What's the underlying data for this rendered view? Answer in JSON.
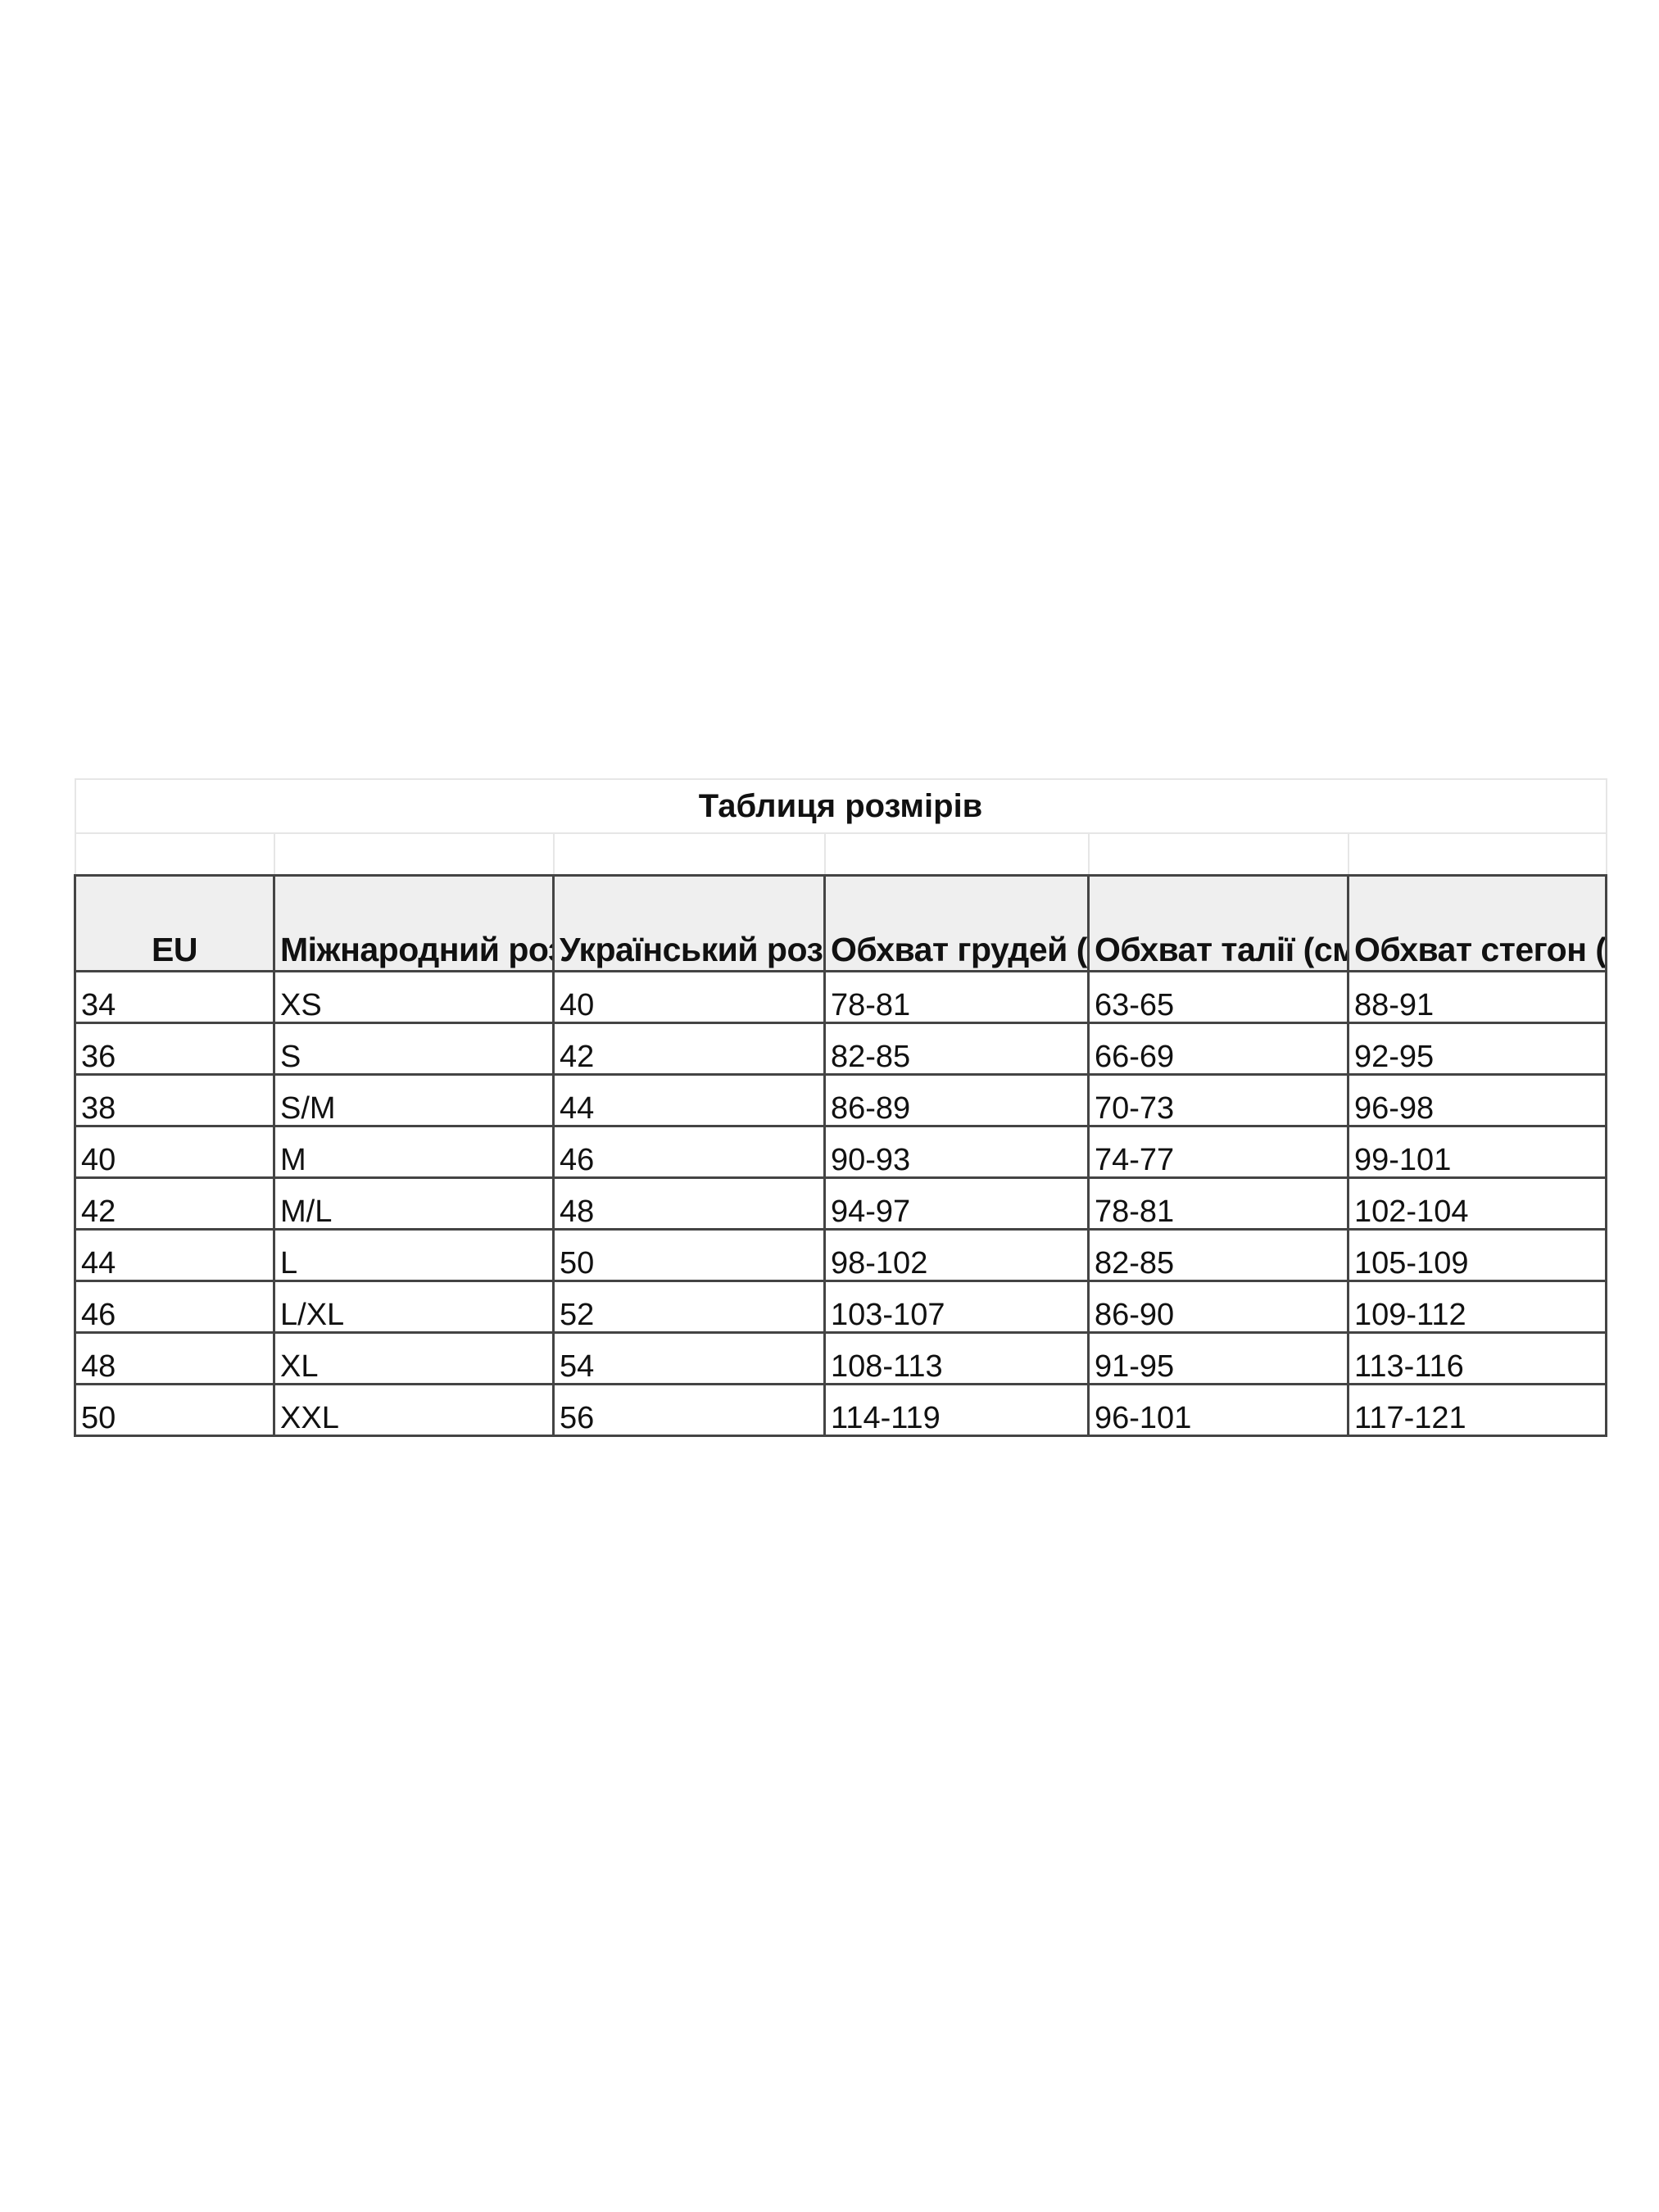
{
  "table": {
    "title": "Таблиця розмірів",
    "headers": [
      "EU",
      "Міжнародний розмір",
      "Український розмір",
      "Обхват грудей (см)",
      "Обхват талії (см)",
      "Обхват стегон (см)"
    ],
    "rows": [
      [
        "34",
        "XS",
        "40",
        "78-81",
        "63-65",
        "88-91"
      ],
      [
        "36",
        "S",
        "42",
        "82-85",
        "66-69",
        "92-95"
      ],
      [
        "38",
        "S/M",
        "44",
        "86-89",
        "70-73",
        "96-98"
      ],
      [
        "40",
        "M",
        "46",
        "90-93",
        "74-77",
        "99-101"
      ],
      [
        "42",
        "M/L",
        "48",
        "94-97",
        "78-81",
        "102-104"
      ],
      [
        "44",
        "L",
        "50",
        "98-102",
        "82-85",
        "105-109"
      ],
      [
        "46",
        "L/XL",
        "52",
        "103-107",
        "86-90",
        "109-112"
      ],
      [
        "48",
        "XL",
        "54",
        "108-113",
        "91-95",
        "113-116"
      ],
      [
        "50",
        "XXL",
        "56",
        "114-119",
        "96-101",
        "117-121"
      ]
    ]
  },
  "colors": {
    "header_bg": "#efefef",
    "border": "#444444",
    "light_border": "#e6e6e6"
  }
}
